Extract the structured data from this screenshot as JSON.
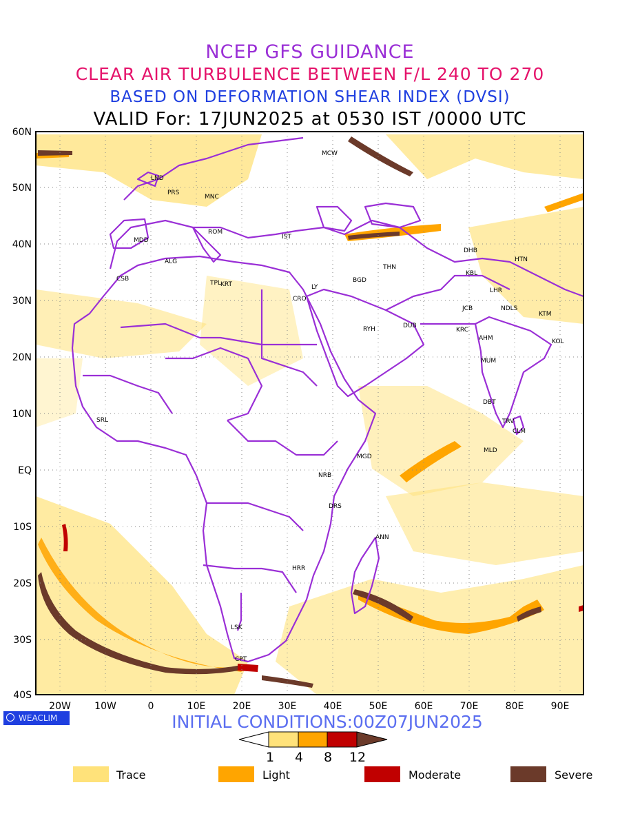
{
  "header": {
    "line1": "NCEP GFS GUIDANCE",
    "line2": "CLEAR AIR TURBULENCE BETWEEN F/L 240 TO 270",
    "line3": "BASED ON DEFORMATION SHEAR INDEX (DVSI)",
    "line4": "VALID For: 17JUN2025 at 0530 IST /0000 UTC"
  },
  "axes": {
    "lat_labels": [
      "60N",
      "50N",
      "40N",
      "30N",
      "20N",
      "10N",
      "EQ",
      "10S",
      "20S",
      "30S",
      "40S"
    ],
    "lon_labels": [
      "20W",
      "10W",
      "0",
      "10E",
      "20E",
      "30E",
      "40E",
      "50E",
      "60E",
      "70E",
      "80E",
      "90E"
    ]
  },
  "cities": [
    "MCW",
    "LND",
    "PRS",
    "MNC",
    "ROM",
    "MDD",
    "IST",
    "ALG",
    "CSB",
    "TPL",
    "KRT",
    "LY",
    "CRO",
    "BGD",
    "THN",
    "DHB",
    "HTN",
    "KBL",
    "LHR",
    "JCB",
    "NDLS",
    "KTM",
    "RYH",
    "DUB",
    "KRC",
    "AHM",
    "KOL",
    "MUM",
    "DBT",
    "TRV",
    "CLM",
    "MLD",
    "SRL",
    "MGD",
    "NRB",
    "DRS",
    "ANN",
    "HRR",
    "LSK",
    "CPT"
  ],
  "branding": {
    "logo_text": "WEACLIM"
  },
  "footer": {
    "initial_conditions": "INITIAL CONDITIONS:00Z07JUN2025"
  },
  "colorbar": {
    "ticks": [
      "1",
      "4",
      "8",
      "12"
    ],
    "colors": [
      "#ffffff",
      "#ffe27a",
      "#ffa500",
      "#c00000",
      "#6b3a2a"
    ]
  },
  "legend": [
    {
      "label": "Trace",
      "color": "#ffe27a"
    },
    {
      "label": "Light",
      "color": "#ffa500"
    },
    {
      "label": "Moderate",
      "color": "#c00000"
    },
    {
      "label": "Severe",
      "color": "#6b3a2a"
    }
  ],
  "style": {
    "boundary_color": "#9a2fd6",
    "trace": "#ffe27a",
    "light": "#ffa500",
    "moderate": "#c00000",
    "severe": "#6b3a2a"
  }
}
